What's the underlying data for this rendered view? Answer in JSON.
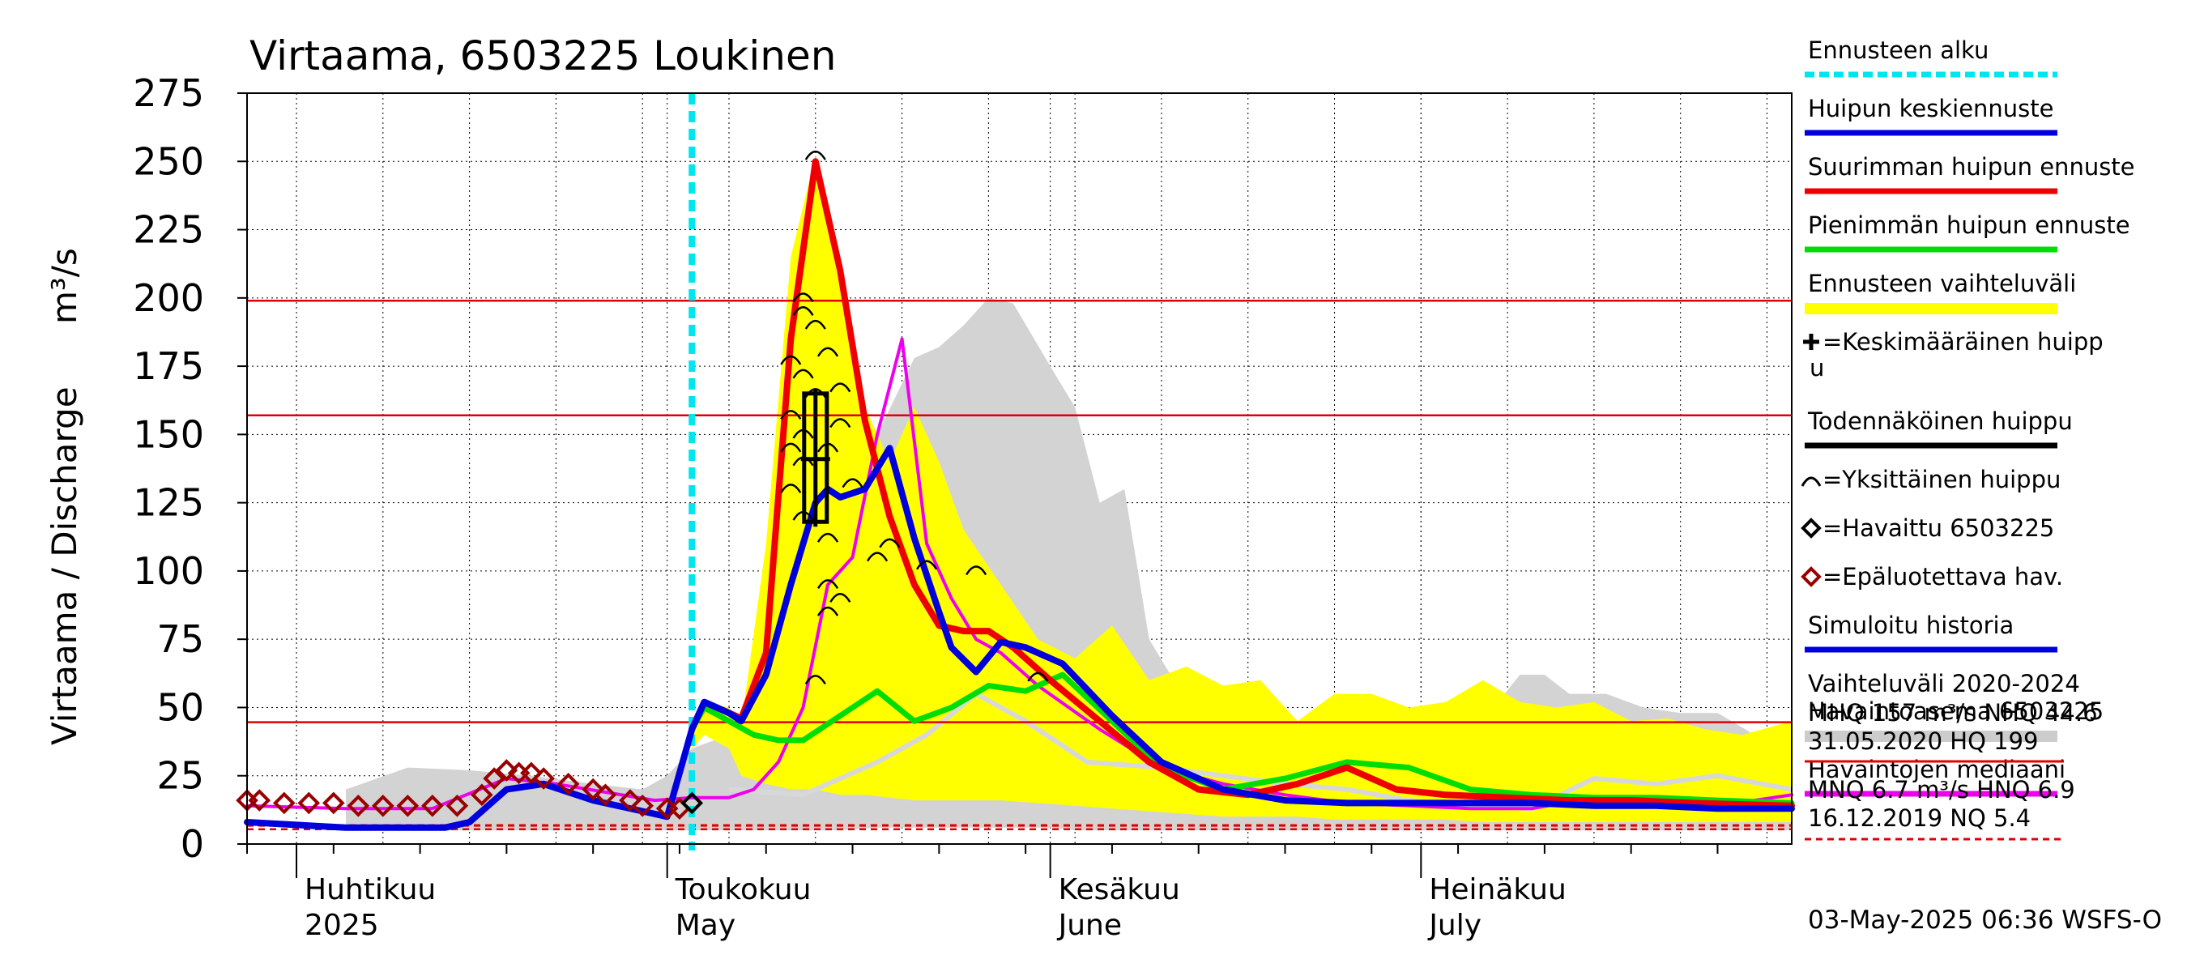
{
  "chart_data": {
    "type": "line",
    "title": "Virtaama, 6503225 Loukinen",
    "ylabel": "Virtaama / Discharge",
    "yunit": "m³/s",
    "ylim": [
      0,
      275
    ],
    "yticks": [
      0,
      25,
      50,
      75,
      100,
      125,
      150,
      175,
      200,
      225,
      250,
      275
    ],
    "xlim": [
      "2025-03-28",
      "2025-07-31"
    ],
    "months": [
      {
        "date": "2025-04-01",
        "fi": "Huhtikuu",
        "en": "2025"
      },
      {
        "date": "2025-05-01",
        "fi": "Toukokuu",
        "en": "May"
      },
      {
        "date": "2025-06-01",
        "fi": "Kesäkuu",
        "en": "June"
      },
      {
        "date": "2025-07-01",
        "fi": "Heinäkuu",
        "en": "July"
      }
    ],
    "grid": true,
    "forecast_start": "2025-05-03",
    "reference_lines": [
      {
        "label": "HQ",
        "value": 199,
        "color": "#e00000",
        "style": "solid"
      },
      {
        "label": "MHQ",
        "value": 157,
        "color": "#e00000",
        "style": "solid"
      },
      {
        "label": "NHQ",
        "value": 44.6,
        "color": "#e00000",
        "style": "solid"
      },
      {
        "label": "HNQ",
        "value": 6.9,
        "color": "#e00000",
        "style": "dashed"
      },
      {
        "label": "MNQ",
        "value": 6.7,
        "color": "#e00000",
        "style": "dashed"
      },
      {
        "label": "NQ",
        "value": 5.4,
        "color": "#e00000",
        "style": "dashed"
      }
    ],
    "range_2020_2024": {
      "x": [
        "2025-04-05",
        "2025-04-10",
        "2025-04-15",
        "2025-04-20",
        "2025-04-25",
        "2025-04-29",
        "2025-05-01",
        "2025-05-03",
        "2025-05-06",
        "2025-05-08",
        "2025-05-11",
        "2025-05-13",
        "2025-05-15",
        "2025-05-18",
        "2025-05-21",
        "2025-05-23",
        "2025-05-25",
        "2025-05-27",
        "2025-05-29",
        "2025-06-01",
        "2025-06-03",
        "2025-06-05",
        "2025-06-07",
        "2025-06-09",
        "2025-06-11",
        "2025-06-13",
        "2025-06-15",
        "2025-06-18",
        "2025-06-21",
        "2025-06-24",
        "2025-06-27",
        "2025-06-30",
        "2025-07-03",
        "2025-07-06",
        "2025-07-09",
        "2025-07-11",
        "2025-07-13",
        "2025-07-16",
        "2025-07-19",
        "2025-07-22",
        "2025-07-25",
        "2025-07-28",
        "2025-07-31"
      ],
      "upper": [
        20,
        28,
        27,
        25,
        22,
        20,
        25,
        35,
        40,
        45,
        55,
        55,
        90,
        150,
        178,
        182,
        190,
        200,
        198,
        175,
        160,
        125,
        130,
        75,
        60,
        55,
        52,
        48,
        45,
        47,
        52,
        50,
        48,
        45,
        62,
        62,
        55,
        55,
        50,
        48,
        48,
        40,
        28
      ],
      "lower": [
        5,
        5,
        5,
        5,
        5,
        5,
        5,
        5,
        5,
        5,
        5,
        5,
        5,
        6,
        6,
        6,
        6,
        6,
        6,
        6,
        5,
        5,
        5,
        5,
        5,
        5,
        5,
        5,
        5,
        5,
        5,
        5,
        5,
        5,
        5,
        5,
        5,
        5,
        5,
        5,
        5,
        5,
        5
      ]
    },
    "forecast_band": {
      "x": [
        "2025-05-03",
        "2025-05-04",
        "2025-05-06",
        "2025-05-07",
        "2025-05-09",
        "2025-05-11",
        "2025-05-13",
        "2025-05-15",
        "2025-05-17",
        "2025-05-19",
        "2025-05-21",
        "2025-05-23",
        "2025-05-25",
        "2025-05-28",
        "2025-05-31",
        "2025-06-03",
        "2025-06-06",
        "2025-06-09",
        "2025-06-12",
        "2025-06-15",
        "2025-06-18",
        "2025-06-21",
        "2025-06-24",
        "2025-06-27",
        "2025-06-30",
        "2025-07-03",
        "2025-07-06",
        "2025-07-09",
        "2025-07-12",
        "2025-07-15",
        "2025-07-18",
        "2025-07-21",
        "2025-07-24",
        "2025-07-27",
        "2025-07-31"
      ],
      "upper": [
        42,
        52,
        50,
        44,
        110,
        215,
        252,
        212,
        160,
        140,
        160,
        140,
        115,
        95,
        75,
        68,
        80,
        60,
        65,
        58,
        60,
        45,
        55,
        55,
        50,
        52,
        60,
        52,
        50,
        52,
        45,
        46,
        42,
        40,
        45
      ],
      "lower": [
        35,
        40,
        35,
        25,
        22,
        20,
        20,
        18,
        18,
        17,
        16,
        16,
        16,
        16,
        15,
        14,
        13,
        12,
        11,
        10,
        10,
        10,
        9,
        9,
        9,
        9,
        8,
        8,
        8,
        8,
        8,
        8,
        8,
        8,
        8
      ]
    },
    "series": [
      {
        "name": "Huipun keskiennuste",
        "color": "#0000dd",
        "x": [
          "2025-05-03",
          "2025-05-04",
          "2025-05-06",
          "2025-05-07",
          "2025-05-09",
          "2025-05-11",
          "2025-05-13",
          "2025-05-14",
          "2025-05-15",
          "2025-05-17",
          "2025-05-19",
          "2025-05-21",
          "2025-05-23",
          "2025-05-24",
          "2025-05-26",
          "2025-05-28",
          "2025-05-30",
          "2025-06-02",
          "2025-06-06",
          "2025-06-10",
          "2025-06-15",
          "2025-06-20",
          "2025-06-25",
          "2025-06-30",
          "2025-07-05",
          "2025-07-10",
          "2025-07-15",
          "2025-07-20",
          "2025-07-25",
          "2025-07-31"
        ],
        "y": [
          42,
          52,
          48,
          45,
          62,
          95,
          125,
          130,
          127,
          130,
          145,
          112,
          85,
          72,
          63,
          74,
          72,
          66,
          47,
          30,
          20,
          16,
          15,
          15,
          15,
          15,
          14,
          14,
          13,
          13
        ]
      },
      {
        "name": "Suurimman huipun ennuste",
        "color": "#ee0000",
        "x": [
          "2025-05-03",
          "2025-05-04",
          "2025-05-06",
          "2025-05-07",
          "2025-05-09",
          "2025-05-11",
          "2025-05-13",
          "2025-05-15",
          "2025-05-17",
          "2025-05-19",
          "2025-05-21",
          "2025-05-23",
          "2025-05-25",
          "2025-05-27",
          "2025-05-29",
          "2025-06-01",
          "2025-06-05",
          "2025-06-09",
          "2025-06-13",
          "2025-06-17",
          "2025-06-21",
          "2025-06-25",
          "2025-06-29",
          "2025-07-03",
          "2025-07-08",
          "2025-07-13",
          "2025-07-18",
          "2025-07-23",
          "2025-07-31"
        ],
        "y": [
          42,
          52,
          48,
          46,
          70,
          185,
          250,
          210,
          155,
          120,
          95,
          80,
          78,
          78,
          72,
          60,
          45,
          30,
          20,
          18,
          22,
          28,
          20,
          18,
          17,
          16,
          16,
          15,
          14
        ]
      },
      {
        "name": "Pienimmän huipun ennuste",
        "color": "#00dd00",
        "x": [
          "2025-05-03",
          "2025-05-04",
          "2025-05-06",
          "2025-05-08",
          "2025-05-10",
          "2025-05-12",
          "2025-05-14",
          "2025-05-16",
          "2025-05-18",
          "2025-05-21",
          "2025-05-24",
          "2025-05-27",
          "2025-05-30",
          "2025-06-02",
          "2025-06-06",
          "2025-06-10",
          "2025-06-15",
          "2025-06-20",
          "2025-06-25",
          "2025-06-30",
          "2025-07-05",
          "2025-07-10",
          "2025-07-15",
          "2025-07-20",
          "2025-07-25",
          "2025-07-31"
        ],
        "y": [
          42,
          50,
          45,
          40,
          38,
          38,
          44,
          50,
          56,
          45,
          50,
          58,
          56,
          62,
          45,
          28,
          20,
          24,
          30,
          28,
          20,
          18,
          17,
          17,
          16,
          15
        ]
      },
      {
        "name": "Havaintojen mediaani",
        "color": "#ee00ee",
        "x": [
          "2025-03-28",
          "2025-04-05",
          "2025-04-12",
          "2025-04-18",
          "2025-04-22",
          "2025-04-26",
          "2025-04-30",
          "2025-05-03",
          "2025-05-06",
          "2025-05-08",
          "2025-05-10",
          "2025-05-12",
          "2025-05-14",
          "2025-05-16",
          "2025-05-18",
          "2025-05-20",
          "2025-05-22",
          "2025-05-24",
          "2025-05-26",
          "2025-05-28",
          "2025-05-31",
          "2025-06-05",
          "2025-06-10",
          "2025-06-15",
          "2025-06-20",
          "2025-06-25",
          "2025-06-30",
          "2025-07-05",
          "2025-07-10",
          "2025-07-15",
          "2025-07-20",
          "2025-07-25",
          "2025-07-31"
        ],
        "y": [
          14,
          13,
          13,
          24,
          22,
          19,
          16,
          17,
          17,
          20,
          30,
          50,
          95,
          105,
          150,
          185,
          110,
          90,
          75,
          70,
          58,
          42,
          28,
          22,
          18,
          15,
          14,
          13,
          13,
          17,
          15,
          14,
          18
        ]
      },
      {
        "name": "Simuloitu historia",
        "color": "#0000dd",
        "x": [
          "2025-03-28",
          "2025-04-01",
          "2025-04-05",
          "2025-04-09",
          "2025-04-13",
          "2025-04-15",
          "2025-04-18",
          "2025-04-21",
          "2025-04-25",
          "2025-04-29",
          "2025-05-01",
          "2025-05-03"
        ],
        "y": [
          8,
          7,
          6,
          6,
          6,
          8,
          20,
          22,
          16,
          12,
          10,
          42
        ]
      }
    ],
    "grey_line": {
      "x": [
        "2025-05-06",
        "2025-05-12",
        "2025-05-18",
        "2025-05-22",
        "2025-05-26",
        "2025-05-30",
        "2025-06-04",
        "2025-06-10",
        "2025-06-15",
        "2025-06-20",
        "2025-06-25",
        "2025-06-30",
        "2025-07-05",
        "2025-07-10",
        "2025-07-15",
        "2025-07-20",
        "2025-07-25",
        "2025-07-31"
      ],
      "y": [
        20,
        18,
        30,
        40,
        55,
        45,
        30,
        28,
        25,
        22,
        20,
        16,
        14,
        13,
        24,
        22,
        25,
        20
      ]
    },
    "observed": [
      {
        "date": "2025-03-28",
        "value": 16
      },
      {
        "date": "2025-03-29",
        "value": 16
      },
      {
        "date": "2025-03-31",
        "value": 15
      },
      {
        "date": "2025-04-02",
        "value": 15
      },
      {
        "date": "2025-04-04",
        "value": 15
      },
      {
        "date": "2025-04-06",
        "value": 14
      },
      {
        "date": "2025-04-08",
        "value": 14
      },
      {
        "date": "2025-04-10",
        "value": 14
      },
      {
        "date": "2025-04-12",
        "value": 14
      },
      {
        "date": "2025-04-14",
        "value": 14
      },
      {
        "date": "2025-04-16",
        "value": 18
      },
      {
        "date": "2025-04-17",
        "value": 24
      },
      {
        "date": "2025-04-18",
        "value": 27
      },
      {
        "date": "2025-04-19",
        "value": 26
      },
      {
        "date": "2025-04-20",
        "value": 26
      },
      {
        "date": "2025-04-21",
        "value": 24
      },
      {
        "date": "2025-04-23",
        "value": 22
      },
      {
        "date": "2025-04-25",
        "value": 20
      },
      {
        "date": "2025-04-26",
        "value": 18
      },
      {
        "date": "2025-04-28",
        "value": 16
      },
      {
        "date": "2025-04-29",
        "value": 14
      },
      {
        "date": "2025-05-01",
        "value": 13
      },
      {
        "date": "2025-05-02",
        "value": 13
      }
    ],
    "observed_reliable": [
      {
        "date": "2025-05-03",
        "value": 15
      }
    ],
    "peaks": [
      {
        "date": "2025-05-13",
        "value": 253
      },
      {
        "date": "2025-05-12",
        "value": 201
      },
      {
        "date": "2025-05-12",
        "value": 196
      },
      {
        "date": "2025-05-13",
        "value": 191
      },
      {
        "date": "2025-05-14",
        "value": 181
      },
      {
        "date": "2025-05-11",
        "value": 178
      },
      {
        "date": "2025-05-12",
        "value": 173
      },
      {
        "date": "2025-05-15",
        "value": 168
      },
      {
        "date": "2025-05-13",
        "value": 166
      },
      {
        "date": "2025-05-11",
        "value": 158
      },
      {
        "date": "2025-05-12",
        "value": 151
      },
      {
        "date": "2025-05-15",
        "value": 155
      },
      {
        "date": "2025-05-11",
        "value": 146
      },
      {
        "date": "2025-05-12",
        "value": 141
      },
      {
        "date": "2025-05-14",
        "value": 146
      },
      {
        "date": "2025-05-16",
        "value": 133
      },
      {
        "date": "2025-05-11",
        "value": 131
      },
      {
        "date": "2025-05-12",
        "value": 121
      },
      {
        "date": "2025-05-14",
        "value": 113
      },
      {
        "date": "2025-05-19",
        "value": 111
      },
      {
        "date": "2025-05-18",
        "value": 106
      },
      {
        "date": "2025-05-22",
        "value": 103
      },
      {
        "date": "2025-05-26",
        "value": 101
      },
      {
        "date": "2025-05-14",
        "value": 96
      },
      {
        "date": "2025-05-15",
        "value": 91
      },
      {
        "date": "2025-05-14",
        "value": 86
      },
      {
        "date": "2025-05-13",
        "value": 61
      },
      {
        "date": "2025-05-31",
        "value": 62
      }
    ],
    "mean_peak": {
      "date": "2025-05-13",
      "value": 141,
      "low": 118,
      "high": 165
    }
  },
  "legend": {
    "items": [
      {
        "label": "Ennusteen alku",
        "kind": "dash-line",
        "color": "#00e5ee"
      },
      {
        "label": "Huipun keskiennuste",
        "kind": "line",
        "color": "#0000dd"
      },
      {
        "label": "Suurimman huipun ennuste",
        "kind": "line",
        "color": "#ee0000"
      },
      {
        "label": "Pienimmän huipun ennuste",
        "kind": "line",
        "color": "#00dd00"
      },
      {
        "label": "Ennusteen vaihteluväli",
        "kind": "band",
        "color": "#ffff00"
      },
      {
        "label": "=Keskimääräinen huipp",
        "label2": "u",
        "kind": "plus-marker",
        "color": "#000000"
      },
      {
        "label": "Todennäköinen huippu",
        "kind": "line",
        "color": "#000000"
      },
      {
        "label": "=Yksittäinen huippu",
        "kind": "arc-marker",
        "color": "#000000"
      },
      {
        "label": "=Havaittu 6503225",
        "kind": "diamond-marker",
        "color": "#000000"
      },
      {
        "label": "=Epäluotettava hav.",
        "kind": "diamond-marker",
        "color": "#990000"
      },
      {
        "label": "Simuloitu historia",
        "kind": "line",
        "color": "#0000dd"
      },
      {
        "label": "Vaihteluväli 2020-2024",
        "label2": " Havaintoasema 6503225",
        "kind": "band",
        "color": "#cccccc"
      },
      {
        "label": "Havaintojen mediaani",
        "kind": "line",
        "color": "#ee00ee"
      }
    ]
  },
  "stats": {
    "line1": "MHQ  157 m³/s NHQ 44.6",
    "line2": "31.05.2020 HQ  199",
    "line3": "MNQ  6.7 m³/s HNQ  6.9",
    "line4": "16.12.2019 NQ  5.4"
  },
  "timestamp": "03-May-2025 06:36 WSFS-O"
}
